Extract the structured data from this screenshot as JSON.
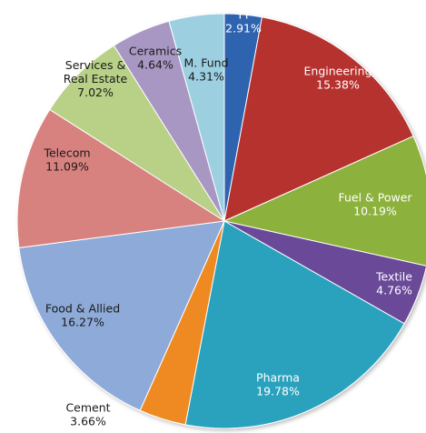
{
  "chart_data": {
    "type": "pie",
    "title": "",
    "start": "top, clockwise",
    "slices": [
      {
        "label": "FI",
        "percent": "2.91%",
        "value": 2.91,
        "color": "#2e63b0",
        "text": "light"
      },
      {
        "label": "Engineering",
        "percent": "15.38%",
        "value": 15.38,
        "color": "#b6302e",
        "text": "light"
      },
      {
        "label": "Fuel & Power",
        "percent": "10.19%",
        "value": 10.19,
        "color": "#8db13c",
        "text": "light"
      },
      {
        "label": "Textile",
        "percent": "4.76%",
        "value": 4.76,
        "color": "#6b4898",
        "text": "light"
      },
      {
        "label": "Pharma",
        "percent": "19.78%",
        "value": 19.78,
        "color": "#2aa2be",
        "text": "light"
      },
      {
        "label": "Cement",
        "percent": "3.66%",
        "value": 3.66,
        "color": "#ef8a23",
        "text": "dark"
      },
      {
        "label": "Food & Allied",
        "percent": "16.27%",
        "value": 16.27,
        "color": "#8eaad8",
        "text": "dark"
      },
      {
        "label": "Telecom",
        "percent": "11.09%",
        "value": 11.09,
        "color": "#d7827f",
        "text": "dark"
      },
      {
        "label": "Services & Real Estate",
        "percent": "7.02%",
        "value": 7.02,
        "color": "#b8d187",
        "text": "dark"
      },
      {
        "label": "Ceramics",
        "percent": "4.64%",
        "value": 4.64,
        "color": "#a997c3",
        "text": "dark"
      },
      {
        "label": "M. Fund",
        "percent": "4.31%",
        "value": 4.31,
        "color": "#9ccfe0",
        "text": "dark"
      }
    ]
  }
}
